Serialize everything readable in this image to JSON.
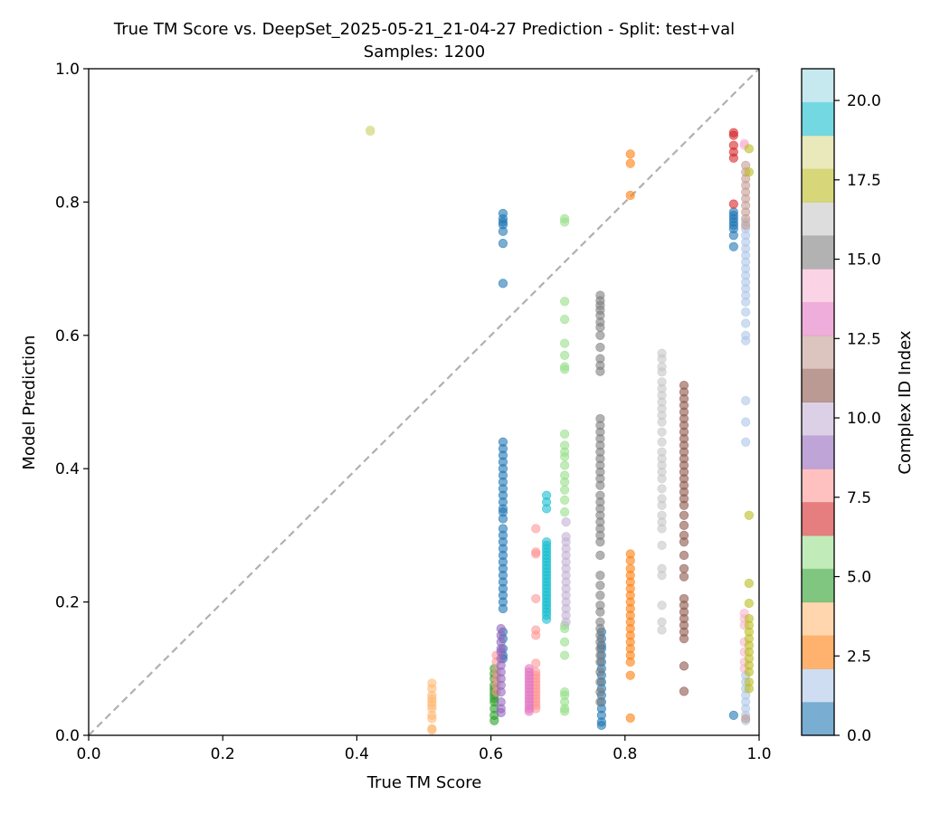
{
  "chart_data": {
    "type": "scatter",
    "title": "True TM Score vs. DeepSet_2025-05-21_21-04-27 Prediction - Split: test+val",
    "subtitle": "Samples: 1200",
    "xlabel": "True TM Score",
    "ylabel": "Model Prediction",
    "xlim": [
      0.0,
      1.0
    ],
    "ylim": [
      0.0,
      1.0
    ],
    "x_ticks": [
      "0.0",
      "0.2",
      "0.4",
      "0.6",
      "0.8",
      "1.0"
    ],
    "y_ticks": [
      "0.0",
      "0.2",
      "0.4",
      "0.6",
      "0.8",
      "1.0"
    ],
    "reference_line": "y = x",
    "grid": false,
    "colorbar": {
      "label": "Complex ID Index",
      "range": [
        0,
        21
      ],
      "ticks": [
        "0.0",
        "2.5",
        "5.0",
        "7.5",
        "10.0",
        "12.5",
        "15.0",
        "17.5",
        "20.0"
      ],
      "colors": [
        "#1f77b4",
        "#aec7e8",
        "#ff7f0e",
        "#ffbb78",
        "#2ca02c",
        "#98df8a",
        "#d62728",
        "#ff9896",
        "#9467bd",
        "#c5b0d5",
        "#8c564b",
        "#c49c94",
        "#e377c2",
        "#f7b6d2",
        "#7f7f7f",
        "#c7c7c7",
        "#bcbd22",
        "#dbdb8d",
        "#17becf",
        "#9edae5"
      ]
    },
    "series": [
      {
        "id": 0,
        "x": 0.618,
        "values": [
          0.783,
          0.775,
          0.77,
          0.766,
          0.756,
          0.738,
          0.678,
          0.44,
          0.43,
          0.42,
          0.41,
          0.4,
          0.39,
          0.38,
          0.37,
          0.36,
          0.35,
          0.34,
          0.335,
          0.325,
          0.31,
          0.3,
          0.29,
          0.28,
          0.27,
          0.26,
          0.25,
          0.24,
          0.23,
          0.22,
          0.21,
          0.2,
          0.19,
          0.155,
          0.145,
          0.13,
          0.12,
          0.115
        ]
      },
      {
        "id": 0,
        "x": 0.765,
        "values": [
          0.155,
          0.145,
          0.135,
          0.13,
          0.12,
          0.11,
          0.1,
          0.09,
          0.08,
          0.07,
          0.06,
          0.05,
          0.04,
          0.03,
          0.02,
          0.015
        ]
      },
      {
        "id": 1,
        "x": 0.962,
        "values": [
          0.785,
          0.78,
          0.775,
          0.77,
          0.765,
          0.76,
          0.75,
          0.733,
          0.03
        ]
      },
      {
        "id": 2,
        "x": 0.98,
        "values": [
          0.77,
          0.76,
          0.75,
          0.74,
          0.73,
          0.72,
          0.71,
          0.7,
          0.69,
          0.68,
          0.67,
          0.66,
          0.65,
          0.635,
          0.618,
          0.6,
          0.592,
          0.502,
          0.47,
          0.44,
          0.09,
          0.08,
          0.07,
          0.06,
          0.05,
          0.04,
          0.03,
          0.022
        ]
      },
      {
        "id": 3,
        "x": 0.808,
        "values": [
          0.872,
          0.858,
          0.81,
          0.272,
          0.262,
          0.25,
          0.24,
          0.23,
          0.22,
          0.21,
          0.2,
          0.19,
          0.18,
          0.17,
          0.16,
          0.15,
          0.14,
          0.13,
          0.12,
          0.11,
          0.09,
          0.026
        ]
      },
      {
        "id": 4,
        "x": 0.512,
        "values": [
          0.078,
          0.07,
          0.06,
          0.055,
          0.05,
          0.045,
          0.04,
          0.03,
          0.025,
          0.01,
          0.008
        ]
      },
      {
        "id": 5,
        "x": 0.605,
        "values": [
          0.1,
          0.092,
          0.085,
          0.075,
          0.07,
          0.065,
          0.06,
          0.055,
          0.05,
          0.04,
          0.03,
          0.022
        ]
      },
      {
        "id": 6,
        "x": 0.71,
        "values": [
          0.775,
          0.77,
          0.651,
          0.624,
          0.588,
          0.57,
          0.553,
          0.549,
          0.452,
          0.435,
          0.425,
          0.418,
          0.405,
          0.39,
          0.38,
          0.368,
          0.353,
          0.335,
          0.165,
          0.16,
          0.14,
          0.12,
          0.065,
          0.06,
          0.05,
          0.04,
          0.036
        ]
      },
      {
        "id": 7,
        "x": 0.962,
        "values": [
          0.904,
          0.9,
          0.885,
          0.875,
          0.866,
          0.797
        ]
      },
      {
        "id": 8,
        "x": 0.667,
        "values": [
          0.31,
          0.275,
          0.272,
          0.205,
          0.158,
          0.15,
          0.108,
          0.095,
          0.09,
          0.085,
          0.08,
          0.075,
          0.07,
          0.065,
          0.06,
          0.055,
          0.05,
          0.045,
          0.04
        ]
      },
      {
        "id": 8,
        "x": 0.608,
        "values": [
          0.12,
          0.11,
          0.095,
          0.085,
          0.075,
          0.065
        ]
      },
      {
        "id": 9,
        "x": 0.615,
        "values": [
          0.16,
          0.15,
          0.14,
          0.13,
          0.125,
          0.115,
          0.105,
          0.095,
          0.085,
          0.075,
          0.065,
          0.05,
          0.04,
          0.034
        ]
      },
      {
        "id": 10,
        "x": 0.712,
        "values": [
          0.32,
          0.298,
          0.29,
          0.28,
          0.27,
          0.26,
          0.25,
          0.24,
          0.23,
          0.22,
          0.21,
          0.2,
          0.19,
          0.18,
          0.17
        ]
      },
      {
        "id": 11,
        "x": 0.888,
        "values": [
          0.525,
          0.515,
          0.505,
          0.495,
          0.485,
          0.475,
          0.465,
          0.455,
          0.445,
          0.435,
          0.425,
          0.415,
          0.405,
          0.395,
          0.385,
          0.375,
          0.365,
          0.355,
          0.345,
          0.33,
          0.315,
          0.3,
          0.29,
          0.27,
          0.25,
          0.238,
          0.205,
          0.195,
          0.185,
          0.175,
          0.165,
          0.155,
          0.145,
          0.104,
          0.066
        ]
      },
      {
        "id": 12,
        "x": 0.98,
        "values": [
          0.855,
          0.845,
          0.835,
          0.825,
          0.815,
          0.805,
          0.795,
          0.785,
          0.775,
          0.765,
          0.025
        ]
      },
      {
        "id": 13,
        "x": 0.657,
        "values": [
          0.1,
          0.095,
          0.09,
          0.085,
          0.08,
          0.075,
          0.07,
          0.065,
          0.06,
          0.055,
          0.05,
          0.045,
          0.04,
          0.036
        ]
      },
      {
        "id": 14,
        "x": 0.978,
        "values": [
          0.888,
          0.885,
          0.183,
          0.175,
          0.165,
          0.14,
          0.125,
          0.11,
          0.1
        ]
      },
      {
        "id": 15,
        "x": 0.763,
        "values": [
          0.66,
          0.652,
          0.645,
          0.638,
          0.63,
          0.62,
          0.612,
          0.6,
          0.582,
          0.565,
          0.555,
          0.546,
          0.475,
          0.465,
          0.455,
          0.445,
          0.435,
          0.425,
          0.415,
          0.405,
          0.395,
          0.385,
          0.375,
          0.36,
          0.35,
          0.34,
          0.33,
          0.32,
          0.31,
          0.3,
          0.29,
          0.27,
          0.24,
          0.225,
          0.21,
          0.195,
          0.185,
          0.17,
          0.16,
          0.15,
          0.14,
          0.13,
          0.12,
          0.11,
          0.095,
          0.08,
          0.065,
          0.05
        ]
      },
      {
        "id": 16,
        "x": 0.855,
        "values": [
          0.573,
          0.565,
          0.553,
          0.545,
          0.53,
          0.52,
          0.51,
          0.5,
          0.49,
          0.48,
          0.47,
          0.455,
          0.44,
          0.425,
          0.415,
          0.405,
          0.395,
          0.385,
          0.37,
          0.355,
          0.345,
          0.33,
          0.32,
          0.31,
          0.285,
          0.25,
          0.24,
          0.195,
          0.17,
          0.158
        ]
      },
      {
        "id": 17,
        "x": 0.985,
        "values": [
          0.88,
          0.845,
          0.33,
          0.228,
          0.198,
          0.175,
          0.165,
          0.155,
          0.145,
          0.135,
          0.125,
          0.115,
          0.105,
          0.095,
          0.08,
          0.07
        ]
      },
      {
        "id": 18,
        "x": 0.42,
        "values": [
          0.908,
          0.906
        ]
      },
      {
        "id": 19,
        "x": 0.683,
        "values": [
          0.36,
          0.35,
          0.34,
          0.29,
          0.285,
          0.28,
          0.275,
          0.27,
          0.265,
          0.26,
          0.255,
          0.25,
          0.245,
          0.24,
          0.235,
          0.23,
          0.225,
          0.22,
          0.215,
          0.21,
          0.205,
          0.2,
          0.195,
          0.19,
          0.185,
          0.18,
          0.174
        ]
      }
    ]
  }
}
